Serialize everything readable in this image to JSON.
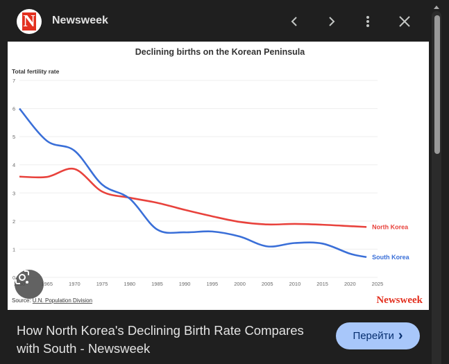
{
  "header": {
    "site_name": "Newsweek",
    "logo_letter": "N",
    "icons": [
      "chevron-left-icon",
      "chevron-right-icon",
      "more-vert-icon",
      "close-icon"
    ]
  },
  "caption": {
    "title": "How North Korea's Declining Birth Rate Compares with South - Newsweek",
    "go_button": "Перейти",
    "go_icon": "›"
  },
  "chart_data": {
    "type": "line",
    "title": "Declining births on the Korean Peninsula",
    "ylabel": "Total fertility rate",
    "xlabel": "",
    "ylim": [
      0,
      7
    ],
    "xlim": [
      1960,
      2025
    ],
    "yticks": [
      "0",
      "1",
      "2",
      "3",
      "4",
      "5",
      "6",
      "7"
    ],
    "xticks": [
      "1960",
      "1965",
      "1970",
      "1975",
      "1980",
      "1985",
      "1990",
      "1995",
      "2000",
      "2005",
      "2010",
      "2015",
      "2020",
      "2025"
    ],
    "grid": true,
    "x": [
      1960,
      1965,
      1970,
      1975,
      1980,
      1985,
      1990,
      1995,
      2000,
      2005,
      2010,
      2015,
      2020,
      2023
    ],
    "series": [
      {
        "name": "North Korea",
        "color": "#e8423c",
        "values": [
          3.58,
          3.57,
          3.85,
          3.05,
          2.83,
          2.65,
          2.4,
          2.17,
          1.97,
          1.88,
          1.9,
          1.87,
          1.82,
          1.79
        ]
      },
      {
        "name": "South Korea",
        "color": "#3a6fd8",
        "values": [
          6.0,
          4.85,
          4.5,
          3.3,
          2.8,
          1.7,
          1.6,
          1.63,
          1.45,
          1.1,
          1.22,
          1.2,
          0.84,
          0.72
        ]
      }
    ],
    "source_prefix": "Source: ",
    "source_link": "U.N. Population Division",
    "watermark": "Newsweek"
  }
}
